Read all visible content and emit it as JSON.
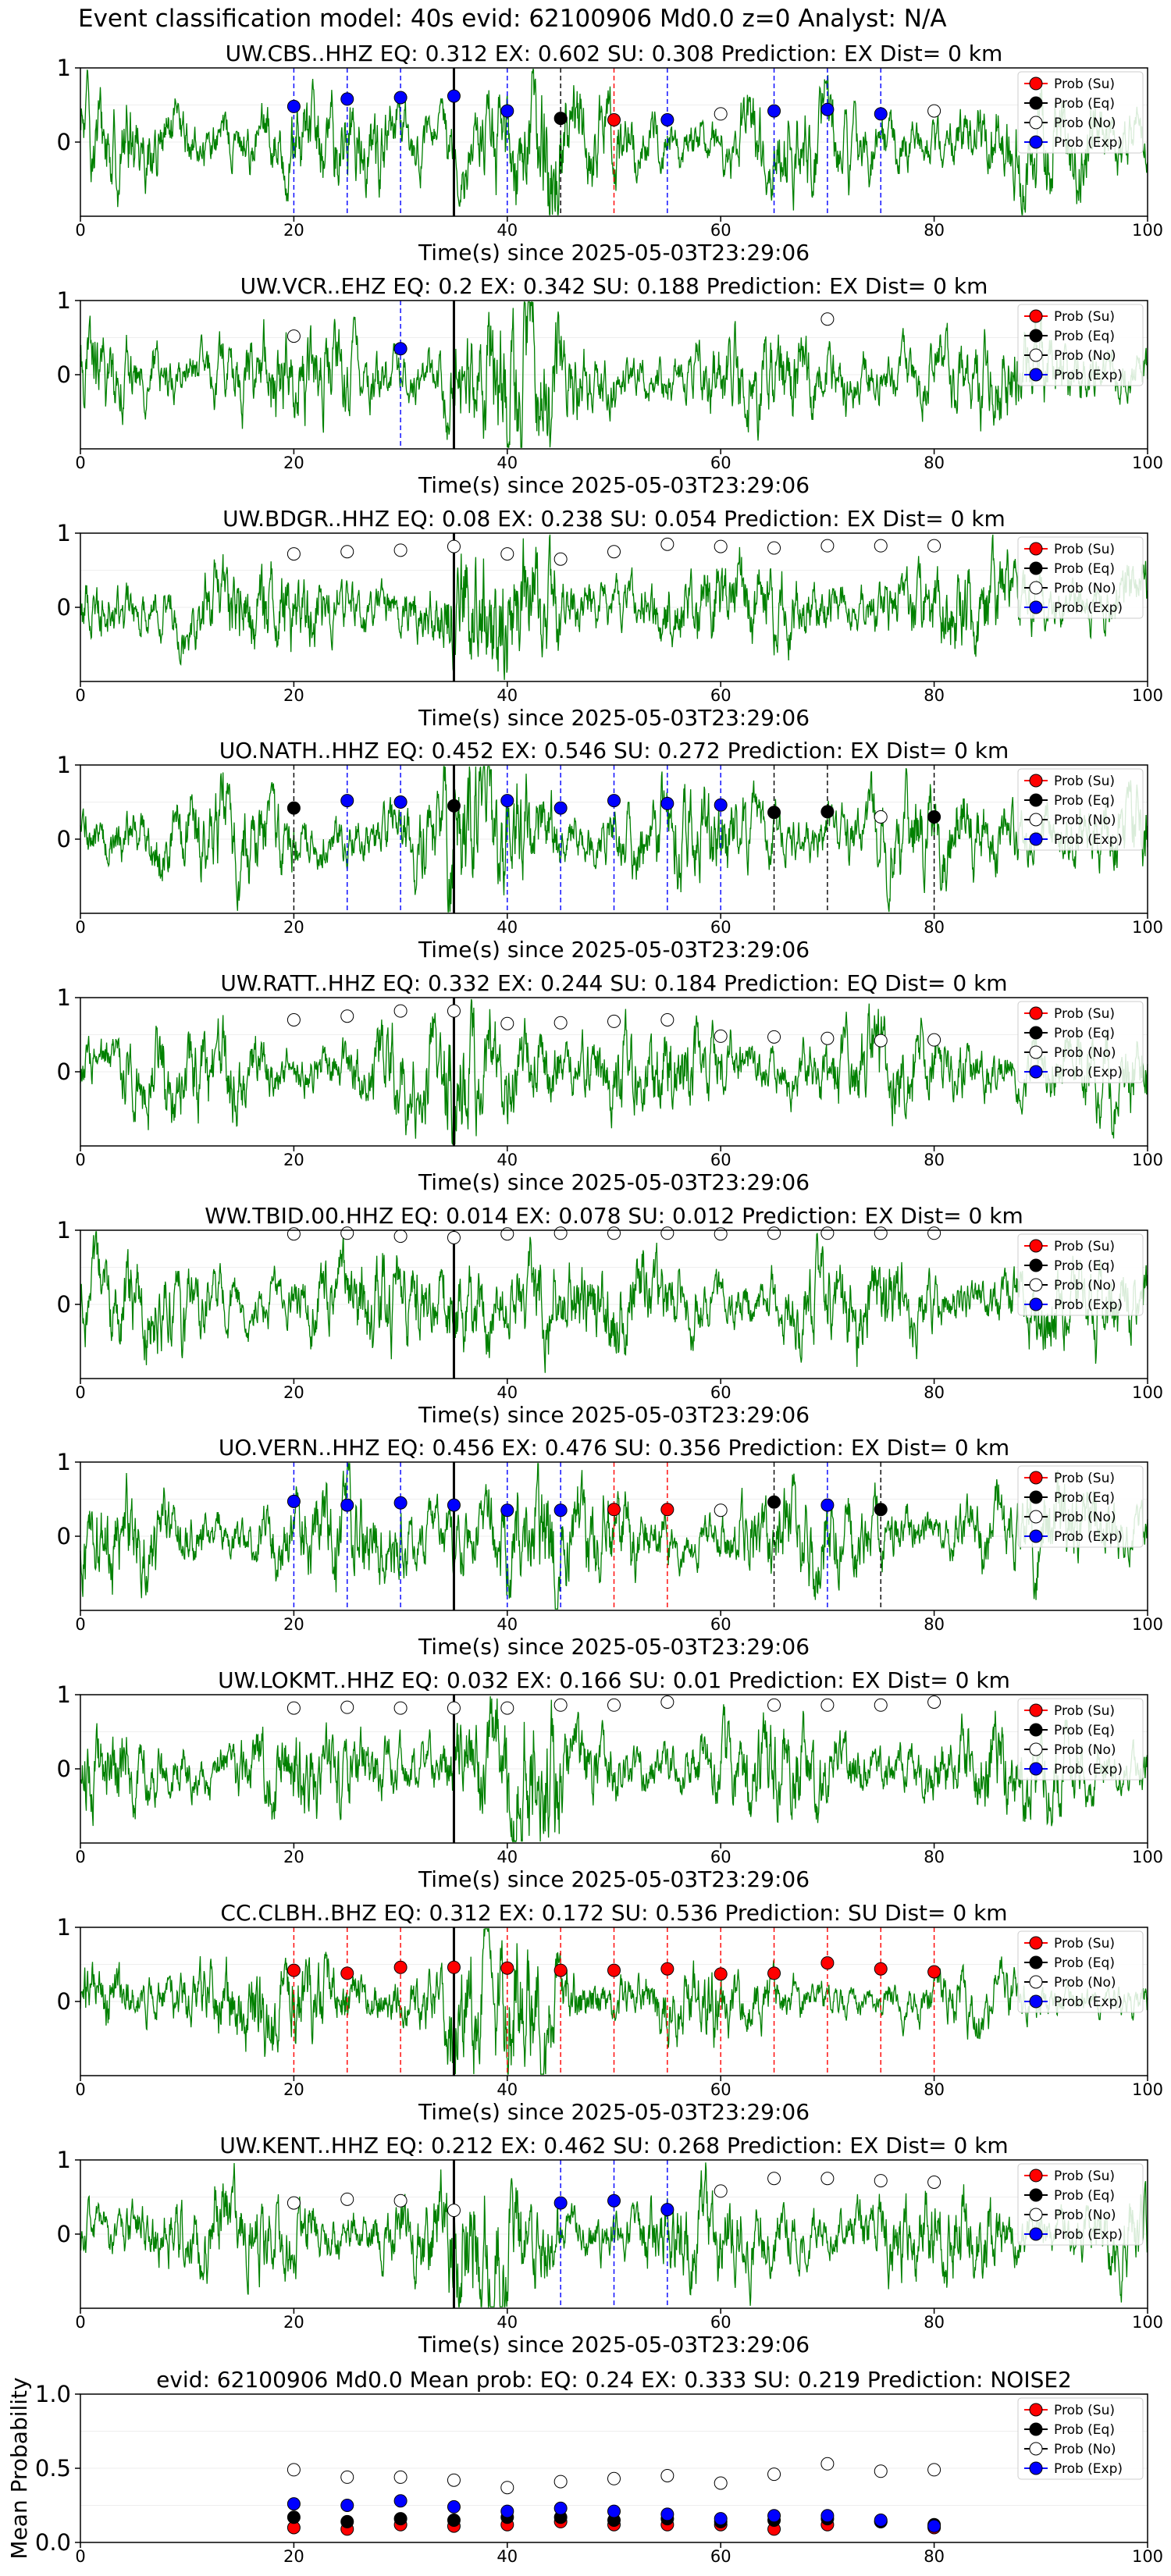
{
  "title": "Event classification model: 40s evid: 62100906 Md0.0 z=0 Analyst: N/A",
  "colors": {
    "waveform": "#008000",
    "su": "#ff0000",
    "eq": "#000000",
    "no": "#ffffff",
    "exp": "#0000ff",
    "onset": "#000000"
  },
  "legend_entries": [
    "Prob (Su)",
    "Prob (Eq)",
    "Prob (No)",
    "Prob (Exp)"
  ],
  "legend_placement": "top-right",
  "chart_data": [
    {
      "type": "line",
      "panel": 1,
      "title": "UW.CBS..HHZ   EQ: 0.312  EX: 0.602  SU: 0.308   Prediction: EX    Dist= 0 km",
      "xlabel": "Time(s) since 2025-05-03T23:29:06",
      "ylabel": "",
      "xlim": [
        0,
        100
      ],
      "ylim": [
        -1,
        1
      ],
      "xticks": [
        "0",
        "20",
        "40",
        "60",
        "80",
        "100"
      ],
      "yticks": [
        "1",
        "0"
      ],
      "onset_x": 35,
      "points": [
        {
          "x": 20,
          "y": 0.48,
          "cls": "exp"
        },
        {
          "x": 25,
          "y": 0.58,
          "cls": "exp"
        },
        {
          "x": 30,
          "y": 0.6,
          "cls": "exp"
        },
        {
          "x": 35,
          "y": 0.62,
          "cls": "exp"
        },
        {
          "x": 40,
          "y": 0.42,
          "cls": "exp"
        },
        {
          "x": 45,
          "y": 0.32,
          "cls": "eq"
        },
        {
          "x": 50,
          "y": 0.3,
          "cls": "su"
        },
        {
          "x": 55,
          "y": 0.3,
          "cls": "exp"
        },
        {
          "x": 60,
          "y": 0.38,
          "cls": "no"
        },
        {
          "x": 65,
          "y": 0.42,
          "cls": "exp"
        },
        {
          "x": 70,
          "y": 0.44,
          "cls": "exp"
        },
        {
          "x": 75,
          "y": 0.38,
          "cls": "exp"
        },
        {
          "x": 80,
          "y": 0.42,
          "cls": "no"
        }
      ]
    },
    {
      "type": "line",
      "panel": 2,
      "title": "UW.VCR..EHZ   EQ: 0.2  EX: 0.342  SU: 0.188   Prediction: EX    Dist= 0 km",
      "xlabel": "Time(s) since 2025-05-03T23:29:06",
      "ylabel": "",
      "xlim": [
        0,
        100
      ],
      "ylim": [
        -1,
        1
      ],
      "xticks": [
        "0",
        "20",
        "40",
        "60",
        "80",
        "100"
      ],
      "yticks": [
        "1",
        "0"
      ],
      "onset_x": 35,
      "points": [
        {
          "x": 20,
          "y": 0.52,
          "cls": "no"
        },
        {
          "x": 30,
          "y": 0.35,
          "cls": "exp"
        },
        {
          "x": 70,
          "y": 0.75,
          "cls": "no"
        }
      ]
    },
    {
      "type": "line",
      "panel": 3,
      "title": "UW.BDGR..HHZ   EQ: 0.08  EX: 0.238  SU: 0.054   Prediction: EX    Dist= 0 km",
      "xlabel": "Time(s) since 2025-05-03T23:29:06",
      "ylabel": "",
      "xlim": [
        0,
        100
      ],
      "ylim": [
        -1,
        1
      ],
      "xticks": [
        "0",
        "20",
        "40",
        "60",
        "80",
        "100"
      ],
      "yticks": [
        "1",
        "0"
      ],
      "onset_x": 35,
      "points": [
        {
          "x": 20,
          "y": 0.72,
          "cls": "no"
        },
        {
          "x": 25,
          "y": 0.75,
          "cls": "no"
        },
        {
          "x": 30,
          "y": 0.77,
          "cls": "no"
        },
        {
          "x": 35,
          "y": 0.82,
          "cls": "no"
        },
        {
          "x": 40,
          "y": 0.72,
          "cls": "no"
        },
        {
          "x": 45,
          "y": 0.65,
          "cls": "no"
        },
        {
          "x": 50,
          "y": 0.75,
          "cls": "no"
        },
        {
          "x": 55,
          "y": 0.85,
          "cls": "no"
        },
        {
          "x": 60,
          "y": 0.82,
          "cls": "no"
        },
        {
          "x": 65,
          "y": 0.8,
          "cls": "no"
        },
        {
          "x": 70,
          "y": 0.83,
          "cls": "no"
        },
        {
          "x": 75,
          "y": 0.83,
          "cls": "no"
        },
        {
          "x": 80,
          "y": 0.83,
          "cls": "no"
        }
      ]
    },
    {
      "type": "line",
      "panel": 4,
      "title": "UO.NATH..HHZ   EQ: 0.452  EX: 0.546  SU: 0.272   Prediction: EX    Dist= 0 km",
      "xlabel": "Time(s) since 2025-05-03T23:29:06",
      "ylabel": "",
      "xlim": [
        0,
        100
      ],
      "ylim": [
        -1,
        1
      ],
      "xticks": [
        "0",
        "20",
        "40",
        "60",
        "80",
        "100"
      ],
      "yticks": [
        "1",
        "0"
      ],
      "onset_x": 35,
      "points": [
        {
          "x": 20,
          "y": 0.42,
          "cls": "eq"
        },
        {
          "x": 25,
          "y": 0.52,
          "cls": "exp"
        },
        {
          "x": 30,
          "y": 0.5,
          "cls": "exp"
        },
        {
          "x": 35,
          "y": 0.45,
          "cls": "eq"
        },
        {
          "x": 40,
          "y": 0.52,
          "cls": "exp"
        },
        {
          "x": 45,
          "y": 0.42,
          "cls": "exp"
        },
        {
          "x": 50,
          "y": 0.52,
          "cls": "exp"
        },
        {
          "x": 55,
          "y": 0.48,
          "cls": "exp"
        },
        {
          "x": 60,
          "y": 0.46,
          "cls": "exp"
        },
        {
          "x": 65,
          "y": 0.36,
          "cls": "eq"
        },
        {
          "x": 70,
          "y": 0.37,
          "cls": "eq"
        },
        {
          "x": 75,
          "y": 0.3,
          "cls": "no"
        },
        {
          "x": 80,
          "y": 0.3,
          "cls": "eq"
        }
      ]
    },
    {
      "type": "line",
      "panel": 5,
      "title": "UW.RATT..HHZ   EQ: 0.332  EX: 0.244  SU: 0.184   Prediction: EQ    Dist= 0 km",
      "xlabel": "Time(s) since 2025-05-03T23:29:06",
      "ylabel": "",
      "xlim": [
        0,
        100
      ],
      "ylim": [
        -1,
        1
      ],
      "xticks": [
        "0",
        "20",
        "40",
        "60",
        "80",
        "100"
      ],
      "yticks": [
        "1",
        "0"
      ],
      "onset_x": 35,
      "points": [
        {
          "x": 20,
          "y": 0.7,
          "cls": "no"
        },
        {
          "x": 25,
          "y": 0.75,
          "cls": "no"
        },
        {
          "x": 30,
          "y": 0.82,
          "cls": "no"
        },
        {
          "x": 35,
          "y": 0.82,
          "cls": "no"
        },
        {
          "x": 40,
          "y": 0.65,
          "cls": "no"
        },
        {
          "x": 45,
          "y": 0.66,
          "cls": "no"
        },
        {
          "x": 50,
          "y": 0.68,
          "cls": "no"
        },
        {
          "x": 55,
          "y": 0.7,
          "cls": "no"
        },
        {
          "x": 60,
          "y": 0.48,
          "cls": "no"
        },
        {
          "x": 65,
          "y": 0.47,
          "cls": "no"
        },
        {
          "x": 70,
          "y": 0.45,
          "cls": "no"
        },
        {
          "x": 75,
          "y": 0.42,
          "cls": "no"
        },
        {
          "x": 80,
          "y": 0.43,
          "cls": "no"
        }
      ]
    },
    {
      "type": "line",
      "panel": 6,
      "title": "WW.TBID.00.HHZ   EQ: 0.014  EX: 0.078  SU: 0.012   Prediction: EX    Dist= 0 km",
      "xlabel": "Time(s) since 2025-05-03T23:29:06",
      "ylabel": "",
      "xlim": [
        0,
        100
      ],
      "ylim": [
        -1,
        1
      ],
      "xticks": [
        "0",
        "20",
        "40",
        "60",
        "80",
        "100"
      ],
      "yticks": [
        "1",
        "0"
      ],
      "onset_x": 35,
      "points": [
        {
          "x": 20,
          "y": 0.95,
          "cls": "no"
        },
        {
          "x": 25,
          "y": 0.96,
          "cls": "no"
        },
        {
          "x": 30,
          "y": 0.92,
          "cls": "no"
        },
        {
          "x": 35,
          "y": 0.9,
          "cls": "no"
        },
        {
          "x": 40,
          "y": 0.95,
          "cls": "no"
        },
        {
          "x": 45,
          "y": 0.96,
          "cls": "no"
        },
        {
          "x": 50,
          "y": 0.96,
          "cls": "no"
        },
        {
          "x": 55,
          "y": 0.96,
          "cls": "no"
        },
        {
          "x": 60,
          "y": 0.95,
          "cls": "no"
        },
        {
          "x": 65,
          "y": 0.96,
          "cls": "no"
        },
        {
          "x": 70,
          "y": 0.96,
          "cls": "no"
        },
        {
          "x": 75,
          "y": 0.96,
          "cls": "no"
        },
        {
          "x": 80,
          "y": 0.96,
          "cls": "no"
        }
      ]
    },
    {
      "type": "line",
      "panel": 7,
      "title": "UO.VERN..HHZ   EQ: 0.456  EX: 0.476  SU: 0.356   Prediction: EX    Dist= 0 km",
      "xlabel": "Time(s) since 2025-05-03T23:29:06",
      "ylabel": "",
      "xlim": [
        0,
        100
      ],
      "ylim": [
        -1,
        1
      ],
      "xticks": [
        "0",
        "20",
        "40",
        "60",
        "80",
        "100"
      ],
      "yticks": [
        "1",
        "0"
      ],
      "onset_x": 35,
      "points": [
        {
          "x": 20,
          "y": 0.47,
          "cls": "exp"
        },
        {
          "x": 25,
          "y": 0.42,
          "cls": "exp"
        },
        {
          "x": 30,
          "y": 0.45,
          "cls": "exp"
        },
        {
          "x": 35,
          "y": 0.42,
          "cls": "exp"
        },
        {
          "x": 40,
          "y": 0.35,
          "cls": "exp"
        },
        {
          "x": 45,
          "y": 0.35,
          "cls": "exp"
        },
        {
          "x": 50,
          "y": 0.36,
          "cls": "su"
        },
        {
          "x": 55,
          "y": 0.36,
          "cls": "su"
        },
        {
          "x": 60,
          "y": 0.35,
          "cls": "no"
        },
        {
          "x": 65,
          "y": 0.46,
          "cls": "eq"
        },
        {
          "x": 70,
          "y": 0.42,
          "cls": "exp"
        },
        {
          "x": 75,
          "y": 0.36,
          "cls": "eq"
        }
      ]
    },
    {
      "type": "line",
      "panel": 8,
      "title": "UW.LOKMT..HHZ   EQ: 0.032  EX: 0.166  SU: 0.01   Prediction: EX    Dist= 0 km",
      "xlabel": "Time(s) since 2025-05-03T23:29:06",
      "ylabel": "",
      "xlim": [
        0,
        100
      ],
      "ylim": [
        -1,
        1
      ],
      "xticks": [
        "0",
        "20",
        "40",
        "60",
        "80",
        "100"
      ],
      "yticks": [
        "1",
        "0"
      ],
      "onset_x": 35,
      "points": [
        {
          "x": 20,
          "y": 0.82,
          "cls": "no"
        },
        {
          "x": 25,
          "y": 0.83,
          "cls": "no"
        },
        {
          "x": 30,
          "y": 0.82,
          "cls": "no"
        },
        {
          "x": 35,
          "y": 0.82,
          "cls": "no"
        },
        {
          "x": 40,
          "y": 0.82,
          "cls": "no"
        },
        {
          "x": 45,
          "y": 0.86,
          "cls": "no"
        },
        {
          "x": 50,
          "y": 0.86,
          "cls": "no"
        },
        {
          "x": 55,
          "y": 0.9,
          "cls": "no"
        },
        {
          "x": 65,
          "y": 0.86,
          "cls": "no"
        },
        {
          "x": 70,
          "y": 0.86,
          "cls": "no"
        },
        {
          "x": 75,
          "y": 0.86,
          "cls": "no"
        },
        {
          "x": 80,
          "y": 0.9,
          "cls": "no"
        }
      ]
    },
    {
      "type": "line",
      "panel": 9,
      "title": "CC.CLBH..BHZ   EQ: 0.312  EX: 0.172  SU: 0.536   Prediction: SU    Dist= 0 km",
      "xlabel": "Time(s) since 2025-05-03T23:29:06",
      "ylabel": "",
      "xlim": [
        0,
        100
      ],
      "ylim": [
        -1,
        1
      ],
      "xticks": [
        "0",
        "20",
        "40",
        "60",
        "80",
        "100"
      ],
      "yticks": [
        "1",
        "0"
      ],
      "onset_x": 35,
      "points": [
        {
          "x": 20,
          "y": 0.42,
          "cls": "su"
        },
        {
          "x": 25,
          "y": 0.38,
          "cls": "su"
        },
        {
          "x": 30,
          "y": 0.46,
          "cls": "su"
        },
        {
          "x": 35,
          "y": 0.46,
          "cls": "su"
        },
        {
          "x": 40,
          "y": 0.45,
          "cls": "su"
        },
        {
          "x": 45,
          "y": 0.42,
          "cls": "su"
        },
        {
          "x": 50,
          "y": 0.42,
          "cls": "su"
        },
        {
          "x": 55,
          "y": 0.44,
          "cls": "su"
        },
        {
          "x": 60,
          "y": 0.37,
          "cls": "su"
        },
        {
          "x": 65,
          "y": 0.38,
          "cls": "su"
        },
        {
          "x": 70,
          "y": 0.52,
          "cls": "su"
        },
        {
          "x": 75,
          "y": 0.44,
          "cls": "su"
        },
        {
          "x": 80,
          "y": 0.4,
          "cls": "su"
        }
      ]
    },
    {
      "type": "line",
      "panel": 10,
      "title": "UW.KENT..HHZ   EQ: 0.212  EX: 0.462  SU: 0.268   Prediction: EX    Dist= 0 km",
      "xlabel": "Time(s) since 2025-05-03T23:29:06",
      "ylabel": "",
      "xlim": [
        0,
        100
      ],
      "ylim": [
        -1,
        1
      ],
      "xticks": [
        "0",
        "20",
        "40",
        "60",
        "80",
        "100"
      ],
      "yticks": [
        "1",
        "0"
      ],
      "onset_x": 35,
      "points": [
        {
          "x": 20,
          "y": 0.42,
          "cls": "no"
        },
        {
          "x": 25,
          "y": 0.47,
          "cls": "no"
        },
        {
          "x": 30,
          "y": 0.45,
          "cls": "no"
        },
        {
          "x": 35,
          "y": 0.32,
          "cls": "no"
        },
        {
          "x": 45,
          "y": 0.42,
          "cls": "exp"
        },
        {
          "x": 50,
          "y": 0.45,
          "cls": "exp"
        },
        {
          "x": 55,
          "y": 0.33,
          "cls": "exp"
        },
        {
          "x": 60,
          "y": 0.58,
          "cls": "no"
        },
        {
          "x": 65,
          "y": 0.75,
          "cls": "no"
        },
        {
          "x": 70,
          "y": 0.75,
          "cls": "no"
        },
        {
          "x": 75,
          "y": 0.72,
          "cls": "no"
        },
        {
          "x": 80,
          "y": 0.7,
          "cls": "no"
        }
      ]
    },
    {
      "type": "scatter",
      "panel": 11,
      "title": "evid: 62100906  Md0.0   Mean prob:   EQ: 0.24  EX: 0.333  SU: 0.219   Prediction: NOISE2",
      "xlabel": "",
      "ylabel": "Mean Probability",
      "xlim": [
        0,
        100
      ],
      "ylim": [
        0,
        1
      ],
      "xticks": [
        "0",
        "20",
        "40",
        "60",
        "80",
        "100"
      ],
      "yticks": [
        "0.0",
        "0.5",
        "1.0"
      ],
      "series": [
        {
          "name": "Prob (Su)",
          "cls": "su",
          "x": [
            20,
            25,
            30,
            35,
            40,
            45,
            50,
            55,
            60,
            65,
            70,
            75,
            80
          ],
          "y": [
            0.1,
            0.09,
            0.12,
            0.11,
            0.12,
            0.14,
            0.12,
            0.12,
            0.12,
            0.09,
            0.12,
            0.14,
            0.1
          ]
        },
        {
          "name": "Prob (Eq)",
          "cls": "eq",
          "x": [
            20,
            25,
            30,
            35,
            40,
            45,
            50,
            55,
            60,
            65,
            70,
            75,
            80
          ],
          "y": [
            0.17,
            0.14,
            0.16,
            0.15,
            0.17,
            0.17,
            0.15,
            0.16,
            0.14,
            0.15,
            0.16,
            0.14,
            0.12
          ]
        },
        {
          "name": "Prob (No)",
          "cls": "no",
          "x": [
            20,
            25,
            30,
            35,
            40,
            45,
            50,
            55,
            60,
            65,
            70,
            75,
            80
          ],
          "y": [
            0.49,
            0.44,
            0.44,
            0.42,
            0.37,
            0.41,
            0.43,
            0.45,
            0.4,
            0.46,
            0.53,
            0.48,
            0.49
          ]
        },
        {
          "name": "Prob (Exp)",
          "cls": "exp",
          "x": [
            20,
            25,
            30,
            35,
            40,
            45,
            50,
            55,
            60,
            65,
            70,
            75,
            80
          ],
          "y": [
            0.26,
            0.25,
            0.28,
            0.24,
            0.21,
            0.23,
            0.21,
            0.19,
            0.16,
            0.18,
            0.18,
            0.15,
            0.11
          ]
        }
      ]
    }
  ]
}
